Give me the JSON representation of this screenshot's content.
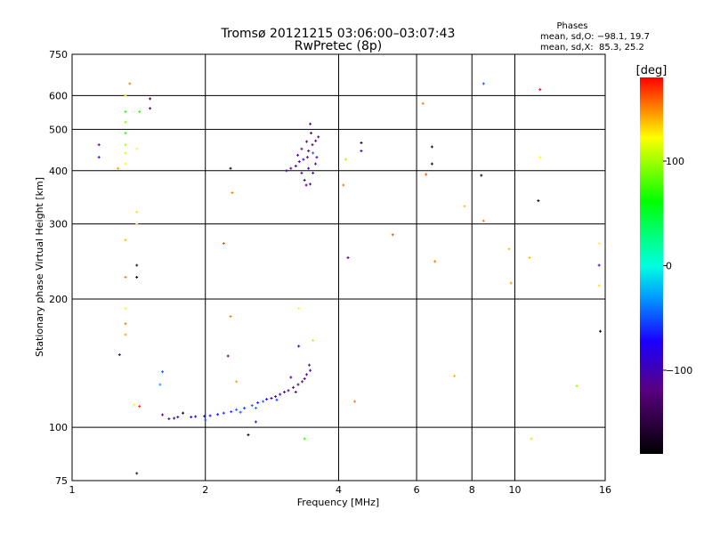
{
  "chart_data": {
    "type": "scatter",
    "title": "Tromsø 20121215 03:06:00–03:07:43",
    "subtitle": "RwPretec (8p)",
    "stats": {
      "heading": "Phases",
      "line_o": "mean, sd,O: −98.1, 19.7",
      "line_x": "mean, sd,X:  85.3, 25.2"
    },
    "xlabel": "Frequency [MHz]",
    "ylabel": "Stationary phase Virtual Height [km]",
    "xscale": "log",
    "yscale": "log",
    "xlim": [
      1,
      16
    ],
    "ylim": [
      75,
      750
    ],
    "xticks": [
      1,
      2,
      4,
      6,
      8,
      10,
      16
    ],
    "xtick_labels": [
      "1",
      "2",
      "4",
      "6",
      "8",
      "10",
      "16"
    ],
    "yticks": [
      75,
      100,
      200,
      300,
      400,
      500,
      600,
      750
    ],
    "ytick_labels": [
      "75",
      "100",
      "200",
      "300",
      "400",
      "500",
      "600",
      "750"
    ],
    "grid": true,
    "colorbar": {
      "label": "[deg]",
      "range": [
        -180,
        180
      ],
      "ticks": [
        100,
        0,
        -100
      ],
      "tick_labels": [
        "100",
        "0",
        "−100"
      ]
    },
    "points_columns": [
      "frequency_MHz",
      "height_km",
      "phase_deg"
    ],
    "points": [
      [
        1.655,
        104.7,
        -110
      ],
      [
        1.7,
        105,
        -130
      ],
      [
        1.733,
        105.7,
        -100
      ],
      [
        1.78,
        108,
        -170
      ],
      [
        1.857,
        105.7,
        -95
      ],
      [
        1.9,
        106,
        -100
      ],
      [
        1.99,
        106.2,
        -90
      ],
      [
        2.05,
        106.5,
        -85
      ],
      [
        2.133,
        107.2,
        -80
      ],
      [
        2.2,
        108,
        -75
      ],
      [
        2.287,
        108.8,
        -70
      ],
      [
        2.35,
        110,
        -60
      ],
      [
        2.45,
        110.9,
        -70
      ],
      [
        2.55,
        112.5,
        -60
      ],
      [
        2.627,
        114.2,
        -75
      ],
      [
        2.7,
        115,
        -55
      ],
      [
        2.751,
        116.4,
        -90
      ],
      [
        2.82,
        117,
        -100
      ],
      [
        2.881,
        118.1,
        -110
      ],
      [
        2.95,
        119.5,
        -105
      ],
      [
        3.017,
        121,
        -120
      ],
      [
        3.08,
        122,
        -115
      ],
      [
        3.16,
        124,
        -125
      ],
      [
        3.24,
        126,
        -130
      ],
      [
        3.31,
        128,
        -120
      ],
      [
        3.35,
        130,
        -110
      ],
      [
        3.387,
        133,
        -115
      ],
      [
        3.434,
        140,
        -120
      ],
      [
        3.12,
        131,
        -130
      ],
      [
        3.45,
        136,
        -110
      ],
      [
        2.4,
        108.5,
        -60
      ],
      [
        2.6,
        111,
        -50
      ],
      [
        2.9,
        116,
        -70
      ],
      [
        3.2,
        121,
        -125
      ],
      [
        2.0,
        104,
        -60
      ],
      [
        2.6,
        103,
        -80
      ],
      [
        3.05,
        400,
        -110
      ],
      [
        3.12,
        405,
        -120
      ],
      [
        3.2,
        410,
        -125
      ],
      [
        3.234,
        435,
        -110
      ],
      [
        3.26,
        420,
        -100
      ],
      [
        3.3,
        450,
        -115
      ],
      [
        3.3,
        395,
        -120
      ],
      [
        3.35,
        380,
        -130
      ],
      [
        3.387,
        468,
        -110
      ],
      [
        3.4,
        430,
        -120
      ],
      [
        3.42,
        405,
        -105
      ],
      [
        3.45,
        515,
        -110
      ],
      [
        3.466,
        490,
        -115
      ],
      [
        3.49,
        460,
        -130
      ],
      [
        3.5,
        440,
        -60
      ],
      [
        3.5,
        395,
        -110
      ],
      [
        3.547,
        415,
        -120
      ],
      [
        3.55,
        470,
        -130
      ],
      [
        3.6,
        480,
        -120
      ],
      [
        3.57,
        430,
        -110
      ],
      [
        3.38,
        370,
        -125
      ],
      [
        3.45,
        372,
        -110
      ],
      [
        3.33,
        425,
        -80
      ],
      [
        3.42,
        445,
        -125
      ],
      [
        1.15,
        460,
        -120
      ],
      [
        1.15,
        430,
        -110
      ],
      [
        1.32,
        600,
        120
      ],
      [
        1.32,
        550,
        60
      ],
      [
        1.35,
        640,
        150
      ],
      [
        1.42,
        550,
        60
      ],
      [
        1.5,
        590,
        -150
      ],
      [
        1.5,
        560,
        -130
      ],
      [
        1.32,
        520,
        80
      ],
      [
        1.32,
        490,
        60
      ],
      [
        1.32,
        460,
        90
      ],
      [
        1.32,
        440,
        100
      ],
      [
        1.4,
        450,
        110
      ],
      [
        1.32,
        415,
        110
      ],
      [
        1.27,
        405,
        140
      ],
      [
        1.4,
        320,
        120
      ],
      [
        1.4,
        300,
        110
      ],
      [
        1.32,
        275,
        130
      ],
      [
        1.4,
        240,
        -150
      ],
      [
        1.32,
        225,
        150
      ],
      [
        1.4,
        225,
        -170
      ],
      [
        1.32,
        190,
        110
      ],
      [
        1.32,
        175,
        150
      ],
      [
        1.32,
        165,
        140
      ],
      [
        1.28,
        148,
        -130
      ],
      [
        1.42,
        112,
        170
      ],
      [
        1.38,
        113,
        110
      ],
      [
        1.6,
        135,
        -60
      ],
      [
        1.58,
        126,
        -40
      ],
      [
        1.6,
        107,
        -120
      ],
      [
        1.4,
        78,
        -140
      ],
      [
        2.28,
        405,
        -170
      ],
      [
        2.3,
        355,
        150
      ],
      [
        2.2,
        270,
        160
      ],
      [
        2.28,
        182,
        150
      ],
      [
        2.25,
        147,
        -120
      ],
      [
        2.35,
        128,
        140
      ],
      [
        2.5,
        96,
        -170
      ],
      [
        3.25,
        190,
        110
      ],
      [
        3.25,
        155,
        -90
      ],
      [
        3.5,
        160,
        120
      ],
      [
        3.35,
        94,
        60
      ],
      [
        4.1,
        370,
        150
      ],
      [
        4.15,
        425,
        90
      ],
      [
        4.2,
        250,
        -110
      ],
      [
        4.35,
        115,
        150
      ],
      [
        4.5,
        445,
        -110
      ],
      [
        4.5,
        465,
        -160
      ],
      [
        5.3,
        283,
        160
      ],
      [
        6.2,
        575,
        150
      ],
      [
        6.3,
        392,
        160
      ],
      [
        6.5,
        455,
        -170
      ],
      [
        6.5,
        415,
        -170
      ],
      [
        6.6,
        245,
        150
      ],
      [
        7.3,
        132,
        130
      ],
      [
        7.7,
        330,
        130
      ],
      [
        8.5,
        640,
        -60
      ],
      [
        8.4,
        390,
        -170
      ],
      [
        8.5,
        305,
        150
      ],
      [
        9.7,
        262,
        130
      ],
      [
        9.8,
        218,
        140
      ],
      [
        10.8,
        250,
        130
      ],
      [
        10.9,
        94,
        120
      ],
      [
        11.4,
        620,
        180
      ],
      [
        11.3,
        340,
        -170
      ],
      [
        11.4,
        430,
        110
      ],
      [
        13.8,
        125,
        90
      ],
      [
        15.5,
        270,
        110
      ],
      [
        15.5,
        240,
        -110
      ],
      [
        15.5,
        215,
        120
      ],
      [
        15.6,
        168,
        -170
      ]
    ]
  }
}
